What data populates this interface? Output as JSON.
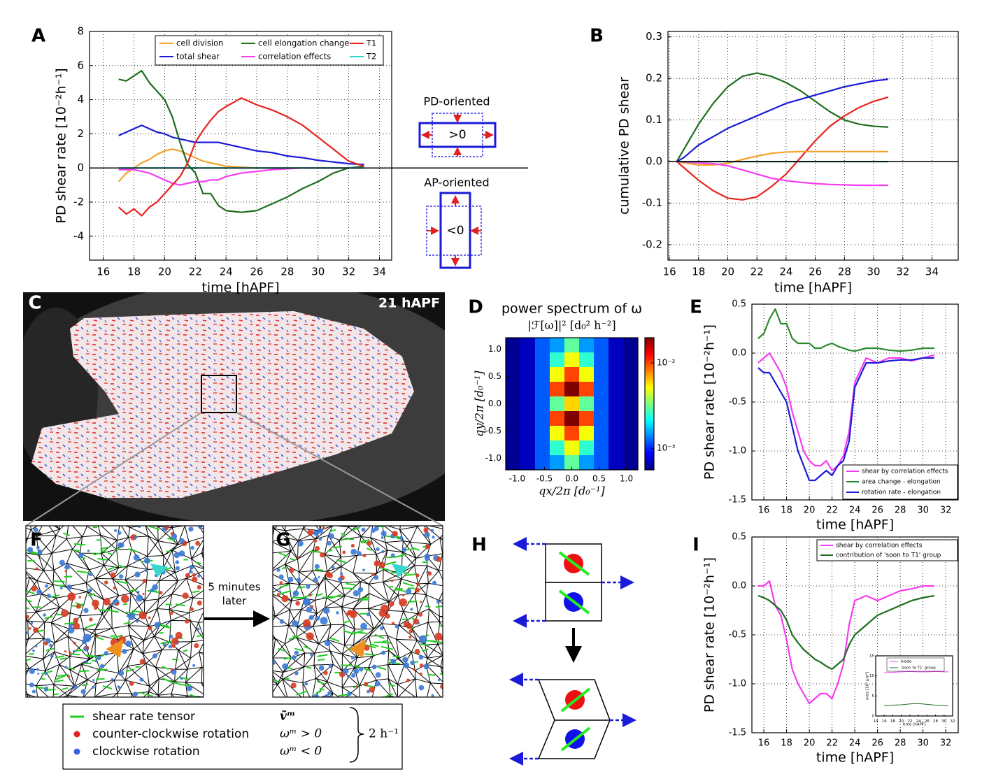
{
  "chart_data": [
    {
      "type": "line",
      "xlabel": "time [hAPF]",
      "ylabel": "PD shear rate [10⁻²h⁻¹]",
      "xlim": [
        15.1,
        34.8
      ],
      "ylim": [
        -5.4,
        8
      ],
      "xticks": [
        16,
        18,
        20,
        22,
        24,
        26,
        28,
        30,
        32,
        34
      ],
      "yticks": [
        -4,
        -2,
        0,
        2,
        4,
        6,
        8
      ],
      "grid": true,
      "zero_line": true,
      "legend": "upper center",
      "x": [
        17,
        17.5,
        18,
        18.5,
        19,
        19.5,
        20,
        20.5,
        21,
        21.5,
        22,
        22.5,
        23,
        23.5,
        24,
        25,
        26,
        27,
        28,
        29,
        30,
        31,
        32,
        33
      ],
      "series": [
        {
          "name": "cell division",
          "color": "#f5a12c",
          "values": [
            -0.8,
            -0.3,
            0,
            0.3,
            0.5,
            0.8,
            1.0,
            1.1,
            1.0,
            0.8,
            0.6,
            0.4,
            0.3,
            0.2,
            0.1,
            0.05,
            0,
            0,
            0,
            0,
            0,
            0,
            0,
            0
          ]
        },
        {
          "name": "total shear",
          "color": "#1a1ad8",
          "values": [
            1.9,
            2.1,
            2.3,
            2.5,
            2.3,
            2.1,
            2.0,
            1.8,
            1.7,
            1.6,
            1.5,
            1.5,
            1.5,
            1.5,
            1.4,
            1.2,
            1.0,
            0.9,
            0.7,
            0.6,
            0.45,
            0.35,
            0.25,
            0.2
          ]
        },
        {
          "name": "cell elongation change",
          "color": "#1e6e1e",
          "values": [
            5.2,
            5.1,
            5.4,
            5.7,
            5.0,
            4.5,
            4.0,
            3.0,
            1.5,
            0.2,
            -0.3,
            -1.5,
            -1.5,
            -2.2,
            -2.5,
            -2.6,
            -2.5,
            -2.1,
            -1.7,
            -1.2,
            -0.8,
            -0.3,
            0,
            0.1
          ]
        },
        {
          "name": "correlation effects",
          "color": "#f53cf0",
          "values": [
            -0.1,
            -0.1,
            -0.1,
            -0.2,
            -0.3,
            -0.5,
            -0.7,
            -0.9,
            -1.0,
            -0.9,
            -0.8,
            -0.8,
            -0.7,
            -0.7,
            -0.5,
            -0.3,
            -0.2,
            -0.1,
            -0.05,
            0,
            0,
            0,
            0,
            0
          ]
        },
        {
          "name": "T1",
          "color": "#e8231e",
          "values": [
            -2.3,
            -2.7,
            -2.4,
            -2.8,
            -2.3,
            -2.0,
            -1.5,
            -1.0,
            -0.5,
            0.3,
            1.5,
            2.2,
            2.8,
            3.3,
            3.6,
            4.1,
            3.7,
            3.4,
            3.0,
            2.5,
            1.8,
            1.1,
            0.4,
            0.1
          ]
        },
        {
          "name": "T2",
          "color": "#2fd6cf",
          "values": [
            0,
            0,
            0,
            0,
            0,
            0,
            0,
            0,
            0,
            0,
            0,
            0,
            0,
            0,
            0,
            0,
            0,
            0,
            0,
            0,
            0,
            0,
            0,
            0
          ]
        }
      ],
      "annotations": [
        "PD-oriented",
        ">0",
        "AP-oriented",
        "<0"
      ]
    },
    {
      "type": "line",
      "xlabel": "time [hAPF]",
      "ylabel": "cumulative PD shear",
      "xlim": [
        15.9,
        35.8
      ],
      "ylim": [
        -0.237,
        0.313
      ],
      "xticks": [
        16,
        18,
        20,
        22,
        24,
        26,
        28,
        30,
        32,
        34
      ],
      "yticks": [
        -0.2,
        -0.1,
        {
          "value": 0,
          "label": "0.0"
        },
        0.1,
        0.2,
        0.3
      ],
      "grid": true,
      "zero_line": true,
      "x": [
        16.5,
        17,
        18,
        19,
        20,
        21,
        22,
        23,
        24,
        25,
        26,
        27,
        28,
        29,
        30,
        31
      ],
      "series": [
        {
          "color": "#1e6e1e",
          "values": [
            0,
            0.03,
            0.09,
            0.14,
            0.18,
            0.205,
            0.213,
            0.205,
            0.19,
            0.17,
            0.145,
            0.12,
            0.1,
            0.09,
            0.085,
            0.083
          ]
        },
        {
          "color": "#1a1ad8",
          "values": [
            0,
            0.01,
            0.04,
            0.06,
            0.08,
            0.095,
            0.11,
            0.125,
            0.14,
            0.15,
            0.16,
            0.17,
            0.18,
            0.187,
            0.194,
            0.198
          ]
        },
        {
          "color": "#e8231e",
          "values": [
            0,
            -0.015,
            -0.045,
            -0.07,
            -0.088,
            -0.092,
            -0.085,
            -0.06,
            -0.03,
            0.01,
            0.05,
            0.085,
            0.11,
            0.13,
            0.145,
            0.155
          ]
        },
        {
          "color": "#f5a12c",
          "values": [
            0,
            -0.003,
            -0.008,
            -0.008,
            -0.004,
            0.005,
            0.013,
            0.02,
            0.023,
            0.024,
            0.024,
            0.024,
            0.024,
            0.024,
            0.024,
            0.024
          ]
        },
        {
          "color": "#f53cf0",
          "values": [
            0,
            -0.001,
            -0.003,
            -0.005,
            -0.01,
            -0.02,
            -0.03,
            -0.04,
            -0.046,
            -0.05,
            -0.053,
            -0.055,
            -0.056,
            -0.057,
            -0.057,
            -0.057
          ]
        },
        {
          "color": "#2a7a7a",
          "values": [
            0,
            0,
            0,
            0,
            0,
            0,
            0,
            0,
            0,
            0,
            0,
            0,
            0,
            0,
            0,
            0
          ]
        }
      ]
    },
    {
      "type": "heatmap",
      "title": "power spectrum of ω",
      "subtitle": "|ℱ[ω]|²  [d₀² h⁻²]",
      "xlabel": "qx/2π  [d₀⁻¹]",
      "ylabel": "qy/2π  [d₀⁻¹]",
      "colormap": "jet",
      "xlim": [
        -1.21,
        1.21
      ],
      "ylim": [
        -1.21,
        1.21
      ],
      "xticks": [
        {
          "value": -1,
          "label": "-1.0"
        },
        -0.5,
        {
          "value": 0,
          "label": "0.0"
        },
        0.5,
        {
          "value": 1,
          "label": "1.0"
        }
      ],
      "yticks": [
        {
          "value": -1,
          "label": "-1.0"
        },
        -0.5,
        {
          "value": 0,
          "label": "0.0"
        },
        0.5,
        {
          "value": 1,
          "label": "1.0"
        }
      ],
      "zlim": [
        0.00056,
        0.0197
      ],
      "zticks": [
        {
          "value": 0.01,
          "label": "10⁻²"
        },
        {
          "value": 0.001,
          "label": "10⁻³"
        }
      ],
      "values": [
        [
          0.0006,
          0.0007,
          0.0012,
          0.0015,
          0.003,
          0.0015,
          0.0012,
          0.0007,
          0.0006
        ],
        [
          0.0006,
          0.0007,
          0.0012,
          0.0025,
          0.005,
          0.0025,
          0.0012,
          0.0007,
          0.0006
        ],
        [
          0.0006,
          0.0007,
          0.0012,
          0.005,
          0.01,
          0.005,
          0.0012,
          0.0007,
          0.0006
        ],
        [
          0.0006,
          0.0007,
          0.0012,
          0.01,
          0.02,
          0.01,
          0.0012,
          0.0007,
          0.0006
        ],
        [
          0.0006,
          0.0007,
          0.0012,
          0.003,
          0.006,
          0.003,
          0.0012,
          0.0007,
          0.0006
        ],
        [
          0.0006,
          0.0007,
          0.0012,
          0.01,
          0.02,
          0.01,
          0.0012,
          0.0007,
          0.0006
        ],
        [
          0.0006,
          0.0007,
          0.0012,
          0.005,
          0.01,
          0.005,
          0.0012,
          0.0007,
          0.0006
        ],
        [
          0.0006,
          0.0007,
          0.0012,
          0.0025,
          0.005,
          0.0025,
          0.0012,
          0.0007,
          0.0006
        ],
        [
          0.0006,
          0.0007,
          0.0012,
          0.0015,
          0.003,
          0.0015,
          0.0012,
          0.0007,
          0.0006
        ]
      ]
    },
    {
      "type": "line",
      "xlabel": "time [hAPF]",
      "ylabel": "PD shear rate [10⁻²h⁻¹]",
      "xlim": [
        14.95,
        33.1
      ],
      "ylim": [
        -1.5,
        0.5
      ],
      "xticks": [
        16,
        18,
        20,
        22,
        24,
        26,
        28,
        30,
        32
      ],
      "yticks": [
        -1.5,
        {
          "value": -1,
          "label": "-1.0"
        },
        -0.5,
        {
          "value": 0,
          "label": "0.0"
        },
        0.5
      ],
      "grid": true,
      "legend": "lower right",
      "x": [
        15.5,
        16,
        16.5,
        17,
        17.5,
        18,
        18.5,
        19,
        19.5,
        20,
        20.5,
        21,
        21.5,
        22,
        22.5,
        23,
        23.5,
        24,
        25,
        26,
        27,
        28,
        29,
        30,
        31
      ],
      "series": [
        {
          "name": "shear by correlation effects",
          "color": "#f53cf0",
          "values": [
            -0.1,
            -0.05,
            0,
            -0.1,
            -0.2,
            -0.35,
            -0.6,
            -0.8,
            -1.0,
            -1.1,
            -1.15,
            -1.15,
            -1.1,
            -1.2,
            -1.15,
            -1.05,
            -0.8,
            -0.3,
            -0.05,
            -0.1,
            -0.05,
            -0.05,
            -0.08,
            -0.05,
            -0.02
          ]
        },
        {
          "name": "area change - elongation",
          "color": "#2a8a2a",
          "values": [
            0.15,
            0.2,
            0.35,
            0.45,
            0.3,
            0.3,
            0.15,
            0.1,
            0.1,
            0.1,
            0.05,
            0.05,
            0.08,
            0.1,
            0.07,
            0.05,
            0.03,
            0.02,
            0.05,
            0.05,
            0.03,
            0.02,
            0.03,
            0.05,
            0.05
          ]
        },
        {
          "name": "rotation rate - elongation",
          "color": "#1a1ad8",
          "values": [
            -0.15,
            -0.2,
            -0.2,
            -0.3,
            -0.4,
            -0.5,
            -0.75,
            -1.0,
            -1.15,
            -1.3,
            -1.3,
            -1.25,
            -1.2,
            -1.25,
            -1.15,
            -1.1,
            -0.9,
            -0.35,
            -0.1,
            -0.1,
            -0.08,
            -0.07,
            -0.07,
            -0.05,
            -0.05
          ]
        }
      ]
    },
    {
      "type": "line",
      "xlabel": "time [hAPF]",
      "ylabel": "PD shear rate [10⁻²h⁻¹]",
      "xlim": [
        14.95,
        33.1
      ],
      "ylim": [
        -1.5,
        0.5
      ],
      "xticks": [
        16,
        18,
        20,
        22,
        24,
        26,
        28,
        30,
        32
      ],
      "yticks": [
        -1.5,
        {
          "value": -1,
          "label": "-1.0"
        },
        -0.5,
        {
          "value": 0,
          "label": "0.0"
        },
        0.5
      ],
      "grid": true,
      "legend": "upper right",
      "x": [
        15.5,
        16,
        16.5,
        17,
        17.5,
        18,
        18.5,
        19,
        19.5,
        20,
        20.5,
        21,
        21.5,
        22,
        22.5,
        23,
        23.5,
        24,
        25,
        26,
        27,
        28,
        29,
        30,
        31
      ],
      "series": [
        {
          "name": "shear by correlation effects",
          "color": "#f53cf0",
          "values": [
            0,
            0,
            0.05,
            -0.2,
            -0.3,
            -0.55,
            -0.85,
            -1.0,
            -1.1,
            -1.2,
            -1.15,
            -1.1,
            -1.1,
            -1.15,
            -1.0,
            -0.8,
            -0.4,
            -0.15,
            -0.1,
            -0.15,
            -0.1,
            -0.05,
            -0.03,
            0,
            0
          ]
        },
        {
          "name": "contribution of 'soon to T1' group",
          "color": "#1e6e1e",
          "values": [
            -0.1,
            -0.12,
            -0.15,
            -0.2,
            -0.25,
            -0.35,
            -0.5,
            -0.58,
            -0.65,
            -0.7,
            -0.75,
            -0.78,
            -0.82,
            -0.85,
            -0.8,
            -0.75,
            -0.6,
            -0.5,
            -0.4,
            -0.3,
            -0.25,
            -0.2,
            -0.15,
            -0.12,
            -0.1
          ]
        }
      ]
    },
    {
      "type": "line",
      "xlabel": "time [hAPF]",
      "ylabel": "area [10² μm²]",
      "xlim": [
        14,
        32
      ],
      "ylim": [
        0,
        15
      ],
      "xticks": [
        14,
        16,
        18,
        20,
        22,
        24,
        26,
        28,
        30,
        32
      ],
      "yticks": [
        0,
        5,
        10,
        15
      ],
      "grid": false,
      "legend": "upper center",
      "x": [
        16,
        18,
        20,
        22,
        24,
        26,
        28,
        30,
        31
      ],
      "series": [
        {
          "name": "blade",
          "color": "#f53cf0",
          "values": [
            10.8,
            10.9,
            11.0,
            11.1,
            11.0,
            11.0,
            11.1,
            11.0,
            11.0
          ]
        },
        {
          "name": "'soon to T1' group",
          "color": "#1e6e1e",
          "values": [
            2.6,
            2.7,
            2.8,
            3.0,
            3.1,
            2.9,
            2.7,
            2.6,
            2.5
          ]
        }
      ]
    }
  ],
  "panels": {
    "letters": [
      "A",
      "B",
      "C",
      "D",
      "E",
      "F",
      "G",
      "H",
      "I"
    ],
    "c_label": "21 hAPF",
    "fg_arrow": [
      "5 minutes",
      "later"
    ],
    "fg_legend": {
      "rows": [
        [
          "shear rate tensor",
          "ṽᵐ"
        ],
        [
          "counter-clockwise rotation",
          "ωᵐ > 0"
        ],
        [
          "clockwise rotation",
          "ωᵐ < 0"
        ]
      ],
      "brace_label": "2 h⁻¹"
    }
  }
}
